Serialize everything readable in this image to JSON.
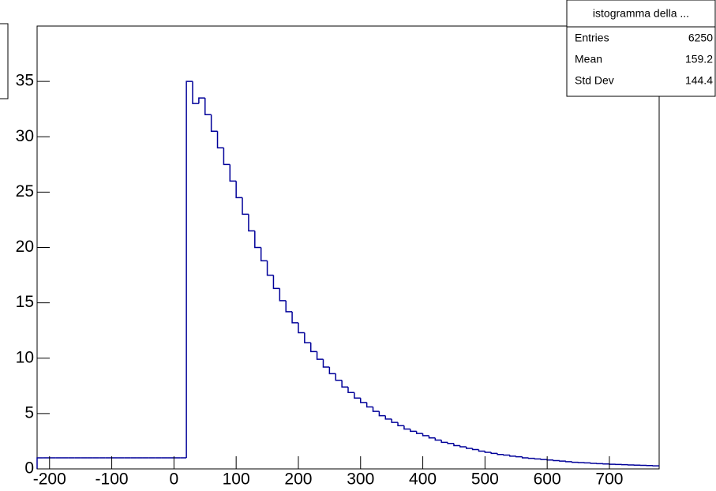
{
  "chart_data": {
    "type": "histogram",
    "bins": [
      -220,
      -210,
      -200,
      -190,
      -180,
      -170,
      -160,
      -150,
      -140,
      -130,
      -120,
      -110,
      -100,
      -90,
      -80,
      -70,
      -60,
      -50,
      -40,
      -30,
      -20,
      -10,
      0,
      10,
      20,
      30,
      40,
      50,
      60,
      70,
      80,
      90,
      100,
      110,
      120,
      130,
      140,
      150,
      160,
      170,
      180,
      190,
      200,
      210,
      220,
      230,
      240,
      250,
      260,
      270,
      280,
      290,
      300,
      310,
      320,
      330,
      340,
      350,
      360,
      370,
      380,
      390,
      400,
      410,
      420,
      430,
      440,
      450,
      460,
      470,
      480,
      490,
      500,
      510,
      520,
      530,
      540,
      550,
      560,
      570,
      580,
      590,
      600,
      610,
      620,
      630,
      640,
      650,
      660,
      670,
      680,
      690,
      700,
      710,
      720,
      730,
      740,
      750,
      760,
      770,
      780
    ],
    "values": [
      1,
      1,
      1,
      1,
      1,
      1,
      1,
      1,
      1,
      1,
      1,
      1,
      1,
      1,
      1,
      1,
      1,
      1,
      1,
      1,
      1,
      1,
      1,
      1,
      35,
      33,
      33.5,
      32,
      30.5,
      29,
      27.5,
      26,
      24.5,
      23,
      21.5,
      20,
      18.8,
      17.5,
      16.3,
      15.2,
      14.2,
      13.2,
      12.3,
      11.4,
      10.6,
      9.9,
      9.2,
      8.6,
      8,
      7.4,
      6.9,
      6.4,
      6,
      5.6,
      5.2,
      4.8,
      4.5,
      4.2,
      3.9,
      3.6,
      3.4,
      3.2,
      3,
      2.8,
      2.6,
      2.4,
      2.3,
      2.1,
      2,
      1.85,
      1.75,
      1.6,
      1.5,
      1.4,
      1.3,
      1.25,
      1.15,
      1.1,
      1,
      0.95,
      0.9,
      0.85,
      0.8,
      0.75,
      0.7,
      0.65,
      0.6,
      0.57,
      0.54,
      0.5,
      0.47,
      0.45,
      0.42,
      0.4,
      0.38,
      0.36,
      0.34,
      0.32,
      0.3,
      0.28
    ],
    "color": "#000099",
    "xlim": [
      -220,
      780
    ],
    "xticks": [
      -200,
      -100,
      0,
      100,
      200,
      300,
      400,
      500,
      600,
      700
    ],
    "ylim": [
      0,
      40
    ],
    "yticks": [
      0,
      5,
      10,
      15,
      20,
      25,
      30,
      35
    ],
    "stats_box": {
      "title": "istogramma della ...",
      "rows": [
        [
          "Entries",
          6250
        ],
        [
          "Mean",
          159.2
        ],
        [
          "Std Dev",
          144.4
        ]
      ]
    }
  }
}
